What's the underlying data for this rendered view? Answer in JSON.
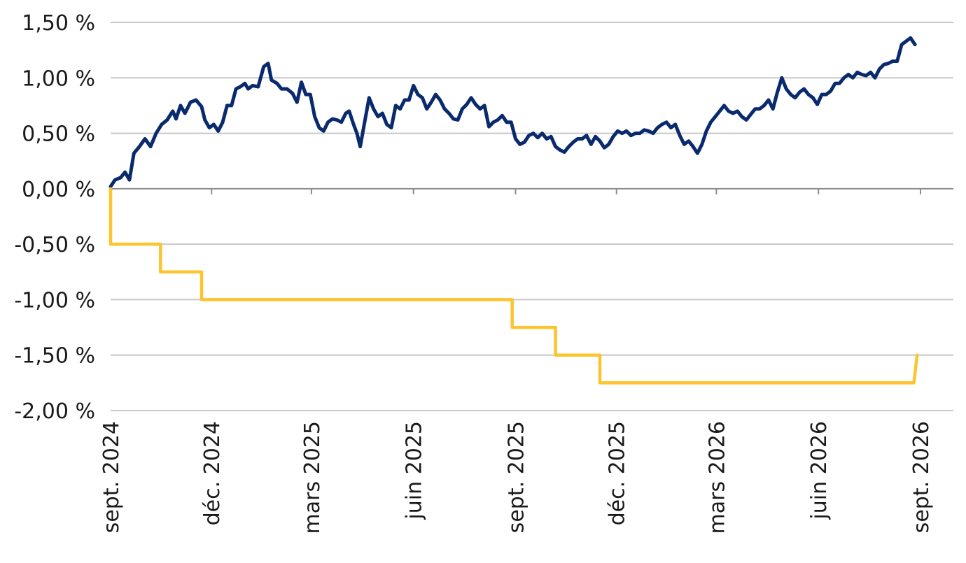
{
  "chart_data": {
    "type": "line",
    "title": "",
    "xlabel": "",
    "ylabel": "",
    "ylim": [
      -2.0,
      1.5
    ],
    "x_range": [
      "2024-09",
      "2026-09"
    ],
    "grid": true,
    "legend": "none",
    "y_ticks": [
      1.5,
      1.0,
      0.5,
      0.0,
      -0.5,
      -1.0,
      -1.5,
      -2.0
    ],
    "y_tick_labels": [
      "1,50 %",
      "1,00 %",
      "0,50 %",
      "0,00 %",
      "-0,50 %",
      "-1,00 %",
      "-1,50 %",
      "-2,00 %"
    ],
    "x_ticks": [
      "2024-09",
      "2024-12",
      "2025-03",
      "2025-06",
      "2025-09",
      "2025-12",
      "2026-03",
      "2026-06",
      "2026-09"
    ],
    "x_tick_labels": [
      "sept. 2024",
      "déc. 2024",
      "mars 2025",
      "juin 2025",
      "sept. 2025",
      "déc. 2025",
      "mars 2026",
      "juin 2026",
      "sept. 2026"
    ],
    "series": [
      {
        "color": "#0a2a6e",
        "style": "line",
        "points": [
          [
            "2024-09-01",
            0.02
          ],
          [
            "2024-09-05",
            0.08
          ],
          [
            "2024-09-10",
            0.1
          ],
          [
            "2024-09-14",
            0.15
          ],
          [
            "2024-09-18",
            0.08
          ],
          [
            "2024-09-22",
            0.32
          ],
          [
            "2024-09-27",
            0.38
          ],
          [
            "2024-10-02",
            0.45
          ],
          [
            "2024-10-07",
            0.38
          ],
          [
            "2024-10-12",
            0.5
          ],
          [
            "2024-10-17",
            0.58
          ],
          [
            "2024-10-22",
            0.62
          ],
          [
            "2024-10-27",
            0.7
          ],
          [
            "2024-10-30",
            0.63
          ],
          [
            "2024-11-03",
            0.75
          ],
          [
            "2024-11-07",
            0.68
          ],
          [
            "2024-11-12",
            0.78
          ],
          [
            "2024-11-17",
            0.8
          ],
          [
            "2024-11-22",
            0.74
          ],
          [
            "2024-11-25",
            0.62
          ],
          [
            "2024-11-29",
            0.55
          ],
          [
            "2024-12-03",
            0.58
          ],
          [
            "2024-12-07",
            0.52
          ],
          [
            "2024-12-11",
            0.6
          ],
          [
            "2024-12-15",
            0.75
          ],
          [
            "2024-12-19",
            0.75
          ],
          [
            "2024-12-23",
            0.9
          ],
          [
            "2024-12-27",
            0.92
          ],
          [
            "2024-12-31",
            0.95
          ],
          [
            "2025-01-03",
            0.9
          ],
          [
            "2025-01-07",
            0.93
          ],
          [
            "2025-01-12",
            0.92
          ],
          [
            "2025-01-17",
            1.1
          ],
          [
            "2025-01-21",
            1.13
          ],
          [
            "2025-01-24",
            0.98
          ],
          [
            "2025-01-29",
            0.95
          ],
          [
            "2025-02-02",
            0.9
          ],
          [
            "2025-02-07",
            0.9
          ],
          [
            "2025-02-12",
            0.86
          ],
          [
            "2025-02-16",
            0.78
          ],
          [
            "2025-02-20",
            0.96
          ],
          [
            "2025-02-24",
            0.85
          ],
          [
            "2025-02-28",
            0.85
          ],
          [
            "2025-03-04",
            0.65
          ],
          [
            "2025-03-08",
            0.55
          ],
          [
            "2025-03-12",
            0.52
          ],
          [
            "2025-03-16",
            0.6
          ],
          [
            "2025-03-20",
            0.63
          ],
          [
            "2025-03-24",
            0.62
          ],
          [
            "2025-03-28",
            0.6
          ],
          [
            "2025-04-01",
            0.68
          ],
          [
            "2025-04-04",
            0.7
          ],
          [
            "2025-04-08",
            0.58
          ],
          [
            "2025-04-11",
            0.5
          ],
          [
            "2025-04-14",
            0.38
          ],
          [
            "2025-04-18",
            0.6
          ],
          [
            "2025-04-22",
            0.82
          ],
          [
            "2025-04-26",
            0.72
          ],
          [
            "2025-04-30",
            0.65
          ],
          [
            "2025-05-04",
            0.68
          ],
          [
            "2025-05-08",
            0.58
          ],
          [
            "2025-05-12",
            0.55
          ],
          [
            "2025-05-16",
            0.75
          ],
          [
            "2025-05-20",
            0.72
          ],
          [
            "2025-05-24",
            0.8
          ],
          [
            "2025-05-28",
            0.8
          ],
          [
            "2025-06-01",
            0.93
          ],
          [
            "2025-06-05",
            0.85
          ],
          [
            "2025-06-09",
            0.82
          ],
          [
            "2025-06-13",
            0.72
          ],
          [
            "2025-06-17",
            0.78
          ],
          [
            "2025-06-21",
            0.85
          ],
          [
            "2025-06-25",
            0.8
          ],
          [
            "2025-06-29",
            0.72
          ],
          [
            "2025-07-03",
            0.68
          ],
          [
            "2025-07-07",
            0.63
          ],
          [
            "2025-07-11",
            0.62
          ],
          [
            "2025-07-15",
            0.72
          ],
          [
            "2025-07-19",
            0.76
          ],
          [
            "2025-07-23",
            0.82
          ],
          [
            "2025-07-27",
            0.76
          ],
          [
            "2025-07-31",
            0.72
          ],
          [
            "2025-08-04",
            0.75
          ],
          [
            "2025-08-08",
            0.56
          ],
          [
            "2025-08-12",
            0.6
          ],
          [
            "2025-08-16",
            0.62
          ],
          [
            "2025-08-20",
            0.66
          ],
          [
            "2025-08-24",
            0.6
          ],
          [
            "2025-08-28",
            0.6
          ],
          [
            "2025-09-01",
            0.45
          ],
          [
            "2025-09-05",
            0.4
          ],
          [
            "2025-09-09",
            0.42
          ],
          [
            "2025-09-13",
            0.48
          ],
          [
            "2025-09-17",
            0.5
          ],
          [
            "2025-09-21",
            0.46
          ],
          [
            "2025-09-25",
            0.5
          ],
          [
            "2025-09-29",
            0.45
          ],
          [
            "2025-10-03",
            0.47
          ],
          [
            "2025-10-07",
            0.38
          ],
          [
            "2025-10-11",
            0.35
          ],
          [
            "2025-10-15",
            0.33
          ],
          [
            "2025-10-19",
            0.38
          ],
          [
            "2025-10-23",
            0.42
          ],
          [
            "2025-10-27",
            0.45
          ],
          [
            "2025-10-31",
            0.45
          ],
          [
            "2025-11-04",
            0.48
          ],
          [
            "2025-11-08",
            0.4
          ],
          [
            "2025-11-12",
            0.47
          ],
          [
            "2025-11-16",
            0.43
          ],
          [
            "2025-11-20",
            0.37
          ],
          [
            "2025-11-24",
            0.4
          ],
          [
            "2025-11-28",
            0.47
          ],
          [
            "2025-12-02",
            0.52
          ],
          [
            "2025-12-06",
            0.5
          ],
          [
            "2025-12-10",
            0.52
          ],
          [
            "2025-12-14",
            0.48
          ],
          [
            "2025-12-18",
            0.5
          ],
          [
            "2025-12-22",
            0.5
          ],
          [
            "2025-12-26",
            0.53
          ],
          [
            "2025-12-30",
            0.52
          ],
          [
            "2026-01-03",
            0.5
          ],
          [
            "2026-01-07",
            0.55
          ],
          [
            "2026-01-11",
            0.58
          ],
          [
            "2026-01-15",
            0.6
          ],
          [
            "2026-01-19",
            0.55
          ],
          [
            "2026-01-23",
            0.58
          ],
          [
            "2026-01-27",
            0.48
          ],
          [
            "2026-01-31",
            0.4
          ],
          [
            "2026-02-04",
            0.43
          ],
          [
            "2026-02-08",
            0.38
          ],
          [
            "2026-02-12",
            0.32
          ],
          [
            "2026-02-16",
            0.4
          ],
          [
            "2026-02-20",
            0.52
          ],
          [
            "2026-02-24",
            0.6
          ],
          [
            "2026-02-28",
            0.65
          ],
          [
            "2026-03-04",
            0.7
          ],
          [
            "2026-03-08",
            0.75
          ],
          [
            "2026-03-12",
            0.7
          ],
          [
            "2026-03-16",
            0.68
          ],
          [
            "2026-03-20",
            0.7
          ],
          [
            "2026-03-24",
            0.65
          ],
          [
            "2026-03-28",
            0.62
          ],
          [
            "2026-04-01",
            0.67
          ],
          [
            "2026-04-05",
            0.72
          ],
          [
            "2026-04-09",
            0.72
          ],
          [
            "2026-04-13",
            0.75
          ],
          [
            "2026-04-17",
            0.8
          ],
          [
            "2026-04-21",
            0.72
          ],
          [
            "2026-04-25",
            0.87
          ],
          [
            "2026-04-29",
            1.0
          ],
          [
            "2026-05-03",
            0.9
          ],
          [
            "2026-05-07",
            0.85
          ],
          [
            "2026-05-11",
            0.82
          ],
          [
            "2026-05-15",
            0.87
          ],
          [
            "2026-05-19",
            0.9
          ],
          [
            "2026-05-23",
            0.85
          ],
          [
            "2026-05-27",
            0.82
          ],
          [
            "2026-05-31",
            0.76
          ],
          [
            "2026-06-04",
            0.85
          ],
          [
            "2026-06-08",
            0.85
          ],
          [
            "2026-06-12",
            0.88
          ],
          [
            "2026-06-16",
            0.95
          ],
          [
            "2026-06-20",
            0.95
          ],
          [
            "2026-06-24",
            1.0
          ],
          [
            "2026-06-28",
            1.03
          ],
          [
            "2026-07-02",
            1.0
          ],
          [
            "2026-07-06",
            1.05
          ],
          [
            "2026-07-10",
            1.03
          ],
          [
            "2026-07-14",
            1.02
          ],
          [
            "2026-07-18",
            1.05
          ],
          [
            "2026-07-22",
            1.0
          ],
          [
            "2026-07-26",
            1.08
          ],
          [
            "2026-07-30",
            1.12
          ],
          [
            "2026-08-03",
            1.13
          ],
          [
            "2026-08-07",
            1.15
          ],
          [
            "2026-08-11",
            1.15
          ],
          [
            "2026-08-15",
            1.3
          ],
          [
            "2026-08-19",
            1.33
          ],
          [
            "2026-08-23",
            1.36
          ],
          [
            "2026-08-27",
            1.3
          ]
        ]
      },
      {
        "color": "#fcc42e",
        "style": "step",
        "points": [
          [
            "2024-09-01",
            0.0
          ],
          [
            "2024-09-01",
            -0.5
          ],
          [
            "2024-10-16",
            -0.5
          ],
          [
            "2024-10-16",
            -0.75
          ],
          [
            "2024-11-22",
            -0.75
          ],
          [
            "2024-11-22",
            -1.0
          ],
          [
            "2025-08-29",
            -1.0
          ],
          [
            "2025-08-29",
            -1.25
          ],
          [
            "2025-10-07",
            -1.25
          ],
          [
            "2025-10-07",
            -1.5
          ],
          [
            "2025-11-16",
            -1.5
          ],
          [
            "2025-11-16",
            -1.75
          ],
          [
            "2026-08-26",
            -1.75
          ],
          [
            "2026-08-29",
            -1.5
          ]
        ]
      }
    ]
  }
}
